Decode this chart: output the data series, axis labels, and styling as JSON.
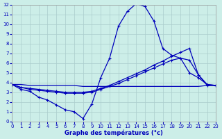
{
  "xlabel": "Graphe des températures (°c)",
  "background_color": "#cceee8",
  "line_color": "#0000bb",
  "grid_color": "#aacccc",
  "xlim": [
    0,
    23
  ],
  "ylim": [
    0,
    12
  ],
  "xticks": [
    0,
    1,
    2,
    3,
    4,
    5,
    6,
    7,
    8,
    9,
    10,
    11,
    12,
    13,
    14,
    15,
    16,
    17,
    18,
    19,
    20,
    21,
    22,
    23
  ],
  "yticks": [
    0,
    1,
    2,
    3,
    4,
    5,
    6,
    7,
    8,
    9,
    10,
    11,
    12
  ],
  "line1_x": [
    0,
    1,
    2,
    3,
    4,
    5,
    6,
    7,
    8,
    9,
    10,
    11,
    12,
    13,
    14,
    15,
    16,
    17,
    18,
    19,
    20,
    21,
    22,
    23
  ],
  "line1_y": [
    3.8,
    3.3,
    3.1,
    2.5,
    2.2,
    1.7,
    1.2,
    1.0,
    0.3,
    1.8,
    4.5,
    6.5,
    9.8,
    11.3,
    12.1,
    11.8,
    10.3,
    7.5,
    6.8,
    6.5,
    6.3,
    4.8,
    3.7,
    3.7
  ],
  "line2_x": [
    0,
    1,
    2,
    3,
    4,
    5,
    6,
    7,
    8,
    9,
    10,
    11,
    12,
    13,
    14,
    15,
    16,
    17,
    18,
    19,
    20,
    21,
    22,
    23
  ],
  "line2_y": [
    3.8,
    3.5,
    3.3,
    3.2,
    3.1,
    3.0,
    2.9,
    2.9,
    2.9,
    3.0,
    3.3,
    3.6,
    3.9,
    4.3,
    4.7,
    5.1,
    5.5,
    5.9,
    6.3,
    6.5,
    5.0,
    4.5,
    3.8,
    3.7
  ],
  "line3_x": [
    0,
    1,
    2,
    3,
    4,
    5,
    6,
    7,
    8,
    9,
    10,
    11,
    12,
    13,
    14,
    15,
    16,
    17,
    18,
    19,
    20,
    21,
    22,
    23
  ],
  "line3_y": [
    3.8,
    3.5,
    3.4,
    3.3,
    3.2,
    3.1,
    3.0,
    3.0,
    3.0,
    3.1,
    3.4,
    3.7,
    4.1,
    4.5,
    4.9,
    5.3,
    5.8,
    6.2,
    6.7,
    7.1,
    7.5,
    4.8,
    3.8,
    3.7
  ],
  "line4_x": [
    0,
    1,
    2,
    3,
    4,
    5,
    6,
    7,
    8,
    9,
    10,
    11,
    12,
    13,
    14,
    15,
    16,
    17,
    18,
    19,
    20,
    21,
    22,
    23
  ],
  "line4_y": [
    3.8,
    3.8,
    3.7,
    3.7,
    3.7,
    3.7,
    3.7,
    3.7,
    3.6,
    3.6,
    3.6,
    3.6,
    3.6,
    3.6,
    3.6,
    3.6,
    3.6,
    3.6,
    3.6,
    3.6,
    3.6,
    3.6,
    3.7,
    3.7
  ]
}
